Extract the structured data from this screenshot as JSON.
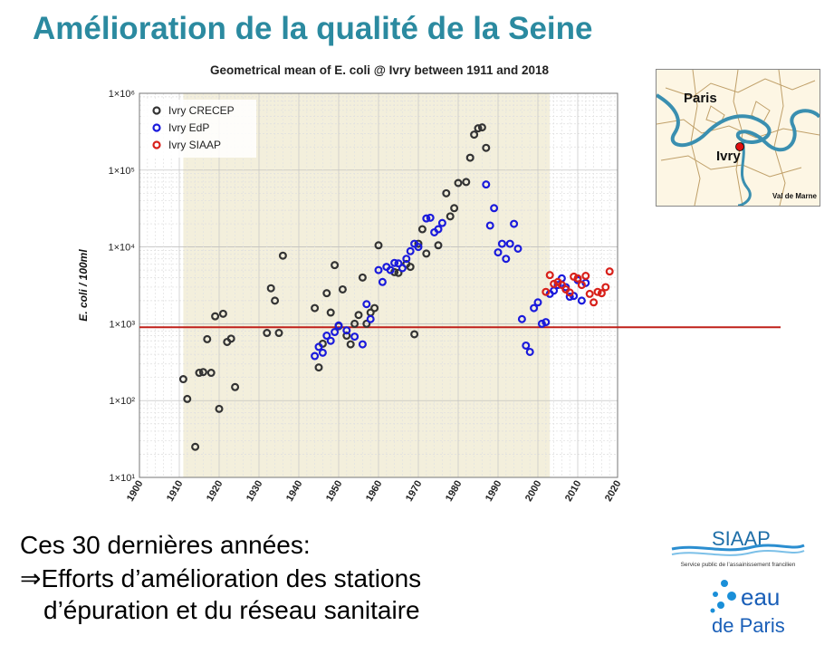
{
  "slide": {
    "title": "Amélioration de la qualité de la Seine",
    "body_line1": "Ces 30 dernières années:",
    "body_arrow": "⇒",
    "body_line2": "Efforts d’amélioration  des stations",
    "body_line3": "d’épuration et du réseau sanitaire"
  },
  "map": {
    "label_paris": "Paris",
    "label_ivry": "Ivry",
    "label_valdemarne": "Val de Marne"
  },
  "logos": {
    "siaap_name": "SIAAP",
    "siaap_tagline": "Service public de l’assainissement francilien",
    "eau_line1": "eau",
    "eau_line2": "de Paris"
  },
  "colors": {
    "title": "#2b8aa0",
    "crecep": "#333333",
    "edp": "#1a1adc",
    "siaap": "#d8201a",
    "threshold": "#c0201a",
    "shade": "#f3efdc",
    "river": "#3a8fb0"
  },
  "chart_data": {
    "type": "scatter",
    "title": "Geometrical mean of E. coli @ Ivry between 1911 and 2018",
    "ylabel": "E. coli / 100ml",
    "xlabel": "",
    "xlim": [
      1900,
      2020
    ],
    "ylim": [
      10,
      1000000
    ],
    "y_scale": "log",
    "x_ticks": [
      "1900",
      "1910",
      "1920",
      "1930",
      "1940",
      "1950",
      "1960",
      "1970",
      "1980",
      "1990",
      "2000",
      "2010",
      "2020"
    ],
    "y_ticks": [
      "1×10¹",
      "1×10²",
      "1×10³",
      "1×10⁴",
      "1×10⁵",
      "1×10⁶"
    ],
    "shaded_range": [
      1911,
      2003
    ],
    "threshold": 900,
    "grid": true,
    "legend_position": "top-left",
    "series": [
      {
        "name": "Ivry CRECEP",
        "points": [
          [
            1911,
            190
          ],
          [
            1912,
            105
          ],
          [
            1914,
            25
          ],
          [
            1915,
            230
          ],
          [
            1916,
            235
          ],
          [
            1917,
            630
          ],
          [
            1918,
            230
          ],
          [
            1919,
            1250
          ],
          [
            1920,
            78
          ],
          [
            1921,
            1350
          ],
          [
            1922,
            580
          ],
          [
            1923,
            640
          ],
          [
            1924,
            150
          ],
          [
            1932,
            760
          ],
          [
            1933,
            2900
          ],
          [
            1934,
            2000
          ],
          [
            1935,
            760
          ],
          [
            1936,
            7700
          ],
          [
            1944,
            1600
          ],
          [
            1945,
            270
          ],
          [
            1946,
            550
          ],
          [
            1947,
            2500
          ],
          [
            1948,
            1400
          ],
          [
            1949,
            5800
          ],
          [
            1950,
            930
          ],
          [
            1951,
            2800
          ],
          [
            1952,
            700
          ],
          [
            1953,
            540
          ],
          [
            1954,
            1000
          ],
          [
            1955,
            1300
          ],
          [
            1956,
            4000
          ],
          [
            1957,
            1000
          ],
          [
            1958,
            1400
          ],
          [
            1959,
            1600
          ],
          [
            1960,
            10500
          ],
          [
            1964,
            4700
          ],
          [
            1965,
            4600
          ],
          [
            1967,
            6000
          ],
          [
            1968,
            5500
          ],
          [
            1969,
            730
          ],
          [
            1970,
            11000
          ],
          [
            1971,
            17000
          ],
          [
            1972,
            8200
          ],
          [
            1975,
            10500
          ],
          [
            1977,
            50000
          ],
          [
            1978,
            25000
          ],
          [
            1979,
            32000
          ],
          [
            1980,
            68000
          ],
          [
            1982,
            70000
          ],
          [
            1983,
            145000
          ],
          [
            1984,
            290000
          ],
          [
            1985,
            350000
          ],
          [
            1986,
            360000
          ],
          [
            1987,
            195000
          ]
        ]
      },
      {
        "name": "Ivry EdP",
        "points": [
          [
            1944,
            380
          ],
          [
            1945,
            500
          ],
          [
            1946,
            420
          ],
          [
            1947,
            700
          ],
          [
            1948,
            600
          ],
          [
            1949,
            780
          ],
          [
            1950,
            950
          ],
          [
            1952,
            820
          ],
          [
            1954,
            680
          ],
          [
            1956,
            540
          ],
          [
            1957,
            1800
          ],
          [
            1958,
            1150
          ],
          [
            1960,
            5000
          ],
          [
            1961,
            3500
          ],
          [
            1962,
            5500
          ],
          [
            1963,
            5000
          ],
          [
            1964,
            6200
          ],
          [
            1965,
            6100
          ],
          [
            1966,
            5300
          ],
          [
            1967,
            7000
          ],
          [
            1968,
            8800
          ],
          [
            1969,
            11000
          ],
          [
            1970,
            10000
          ],
          [
            1972,
            23500
          ],
          [
            1973,
            24000
          ],
          [
            1974,
            15500
          ],
          [
            1975,
            17000
          ],
          [
            1976,
            20500
          ],
          [
            1987,
            65000
          ],
          [
            1988,
            19000
          ],
          [
            1989,
            32000
          ],
          [
            1990,
            8500
          ],
          [
            1991,
            11000
          ],
          [
            1992,
            7000
          ],
          [
            1993,
            11000
          ],
          [
            1994,
            20000
          ],
          [
            1995,
            9500
          ],
          [
            1996,
            1150
          ],
          [
            1997,
            520
          ],
          [
            1998,
            430
          ],
          [
            1999,
            1600
          ],
          [
            2000,
            1900
          ],
          [
            2001,
            1000
          ],
          [
            2002,
            1050
          ],
          [
            2003,
            2450
          ],
          [
            2004,
            2700
          ],
          [
            2005,
            3200
          ],
          [
            2006,
            3900
          ],
          [
            2007,
            3000
          ],
          [
            2008,
            2250
          ],
          [
            2009,
            2300
          ],
          [
            2010,
            3700
          ],
          [
            2011,
            2000
          ],
          [
            2012,
            3400
          ]
        ]
      },
      {
        "name": "Ivry SIAAP",
        "points": [
          [
            2002,
            2600
          ],
          [
            2003,
            4300
          ],
          [
            2004,
            3300
          ],
          [
            2005,
            3500
          ],
          [
            2006,
            3200
          ],
          [
            2007,
            2800
          ],
          [
            2008,
            2550
          ],
          [
            2009,
            4100
          ],
          [
            2010,
            3900
          ],
          [
            2011,
            3200
          ],
          [
            2012,
            4200
          ],
          [
            2013,
            2450
          ],
          [
            2014,
            1900
          ],
          [
            2015,
            2600
          ],
          [
            2016,
            2500
          ],
          [
            2017,
            3000
          ],
          [
            2018,
            4800
          ]
        ]
      }
    ]
  }
}
